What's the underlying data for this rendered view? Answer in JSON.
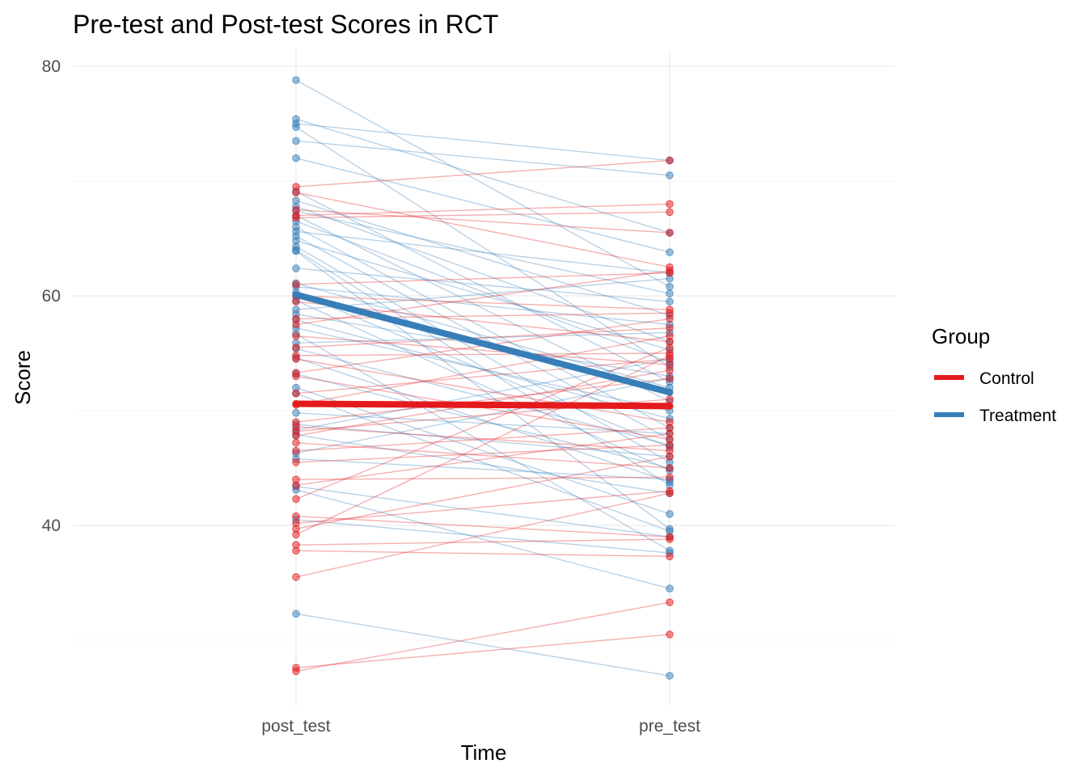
{
  "chart_data": {
    "type": "line",
    "title": "Pre-test and Post-test Scores in RCT",
    "xlabel": "Time",
    "ylabel": "Score",
    "categories": [
      "post_test",
      "pre_test"
    ],
    "ylim": [
      26,
      81
    ],
    "y_ticks": [
      40,
      60,
      80
    ],
    "y_minor_ticks": [
      30,
      50,
      70
    ],
    "grid": true,
    "legend": {
      "title": "Group",
      "placement": "right",
      "entries": [
        "Control",
        "Treatment"
      ]
    },
    "colors": {
      "Control": "#e41a1c",
      "Treatment": "#377eb8"
    },
    "group_means": [
      {
        "name": "Control",
        "values": [
          50.6,
          50.4
        ]
      },
      {
        "name": "Treatment",
        "values": [
          60.1,
          51.6
        ]
      }
    ],
    "subjects": {
      "Control": [
        [
          69.5,
          71.8
        ],
        [
          69.0,
          62.5
        ],
        [
          67.5,
          65.5
        ],
        [
          67.0,
          68.0
        ],
        [
          66.8,
          67.3
        ],
        [
          61.0,
          62.0
        ],
        [
          60.0,
          58.8
        ],
        [
          59.5,
          56.0
        ],
        [
          58.0,
          58.5
        ],
        [
          57.5,
          62.2
        ],
        [
          56.5,
          54.0
        ],
        [
          55.5,
          57.2
        ],
        [
          54.8,
          55.0
        ],
        [
          54.5,
          49.0
        ],
        [
          53.3,
          58.0
        ],
        [
          53.0,
          47.5
        ],
        [
          51.5,
          54.5
        ],
        [
          50.5,
          56.5
        ],
        [
          49.0,
          52.8
        ],
        [
          48.6,
          46.5
        ],
        [
          48.2,
          51.0
        ],
        [
          47.8,
          53.5
        ],
        [
          47.2,
          45.0
        ],
        [
          46.5,
          48.5
        ],
        [
          45.5,
          47.0
        ],
        [
          44.0,
          44.2
        ],
        [
          43.5,
          48.0
        ],
        [
          42.3,
          55.5
        ],
        [
          40.8,
          39.0
        ],
        [
          40.2,
          43.0
        ],
        [
          39.7,
          46.0
        ],
        [
          39.2,
          54.8
        ],
        [
          38.3,
          38.8
        ],
        [
          37.8,
          37.3
        ],
        [
          35.5,
          42.8
        ],
        [
          27.6,
          30.5
        ],
        [
          27.3,
          33.3
        ]
      ],
      "Treatment": [
        [
          78.8,
          60.8
        ],
        [
          75.4,
          65.5
        ],
        [
          75.0,
          71.8
        ],
        [
          74.7,
          53.8
        ],
        [
          73.5,
          70.5
        ],
        [
          72.0,
          63.8
        ],
        [
          69.1,
          52.5
        ],
        [
          68.3,
          58.3
        ],
        [
          67.8,
          56.0
        ],
        [
          67.4,
          60.2
        ],
        [
          67.0,
          50.8
        ],
        [
          66.5,
          54.2
        ],
        [
          66.0,
          48.5
        ],
        [
          65.6,
          62.0
        ],
        [
          65.2,
          47.5
        ],
        [
          64.8,
          55.3
        ],
        [
          64.3,
          45.5
        ],
        [
          64.0,
          43.5
        ],
        [
          63.9,
          39.7
        ],
        [
          62.4,
          59.5
        ],
        [
          61.1,
          52.0
        ],
        [
          60.8,
          57.5
        ],
        [
          60.3,
          46.8
        ],
        [
          59.6,
          44.8
        ],
        [
          58.8,
          61.5
        ],
        [
          58.4,
          53.0
        ],
        [
          57.9,
          49.3
        ],
        [
          57.2,
          50.0
        ],
        [
          56.7,
          37.8
        ],
        [
          55.9,
          56.8
        ],
        [
          55.4,
          47.0
        ],
        [
          54.6,
          43.8
        ],
        [
          53.2,
          45.0
        ],
        [
          52.0,
          41.0
        ],
        [
          51.5,
          39.5
        ],
        [
          49.8,
          48.0
        ],
        [
          48.8,
          46.0
        ],
        [
          48.3,
          54.5
        ],
        [
          47.9,
          42.8
        ],
        [
          46.3,
          52.8
        ],
        [
          45.8,
          44.0
        ],
        [
          43.4,
          39.0
        ],
        [
          43.1,
          34.5
        ],
        [
          40.5,
          37.6
        ],
        [
          32.3,
          26.9
        ]
      ]
    }
  }
}
